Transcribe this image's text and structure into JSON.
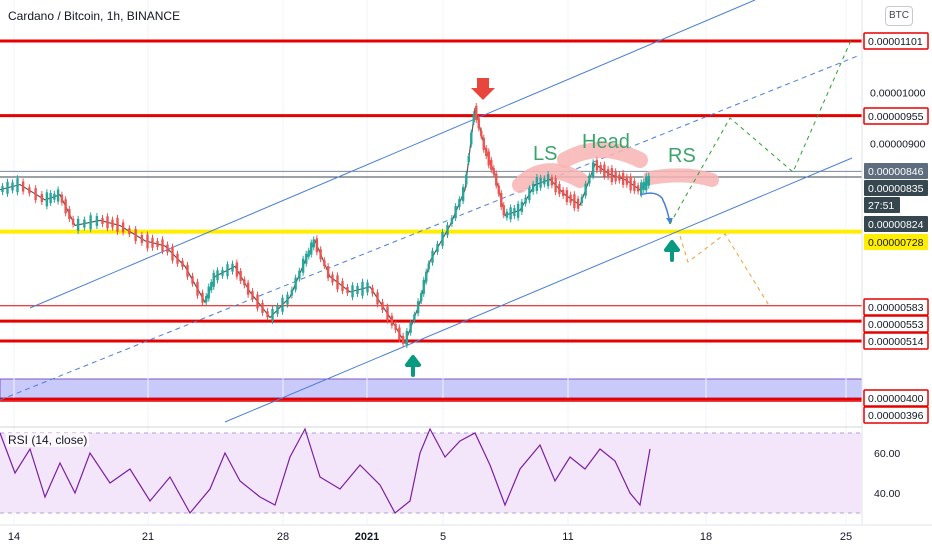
{
  "header": {
    "title": "Cardano / Bitcoin, 1h, BINANCE",
    "currency_button": "BTC"
  },
  "rsi": {
    "label": "RSI (14, close)"
  },
  "colors": {
    "red": "#e60000",
    "yellow": "#ffee00",
    "blue": "#4a7fd6",
    "green": "#089981",
    "candle_up": "#26a69a",
    "candle_down": "#ef5350",
    "rsi": "#7b1fa2",
    "band": "#9d9df5",
    "rsi_band": "#f3e6fb"
  },
  "chart_data": {
    "type": "candlestick",
    "title": "Cardano / Bitcoin, 1h, BINANCE",
    "x_ticks": [
      "14",
      "21",
      "28",
      "2021",
      "5",
      "11",
      "18",
      "25"
    ],
    "y_ticks": [
      9e-06,
      1e-05
    ],
    "price_labels": [
      {
        "value": "0.00001101",
        "style": "red"
      },
      {
        "value": "0.00000955",
        "style": "red"
      },
      {
        "value": "0.00000846",
        "style": "gray"
      },
      {
        "value": "0.00000835",
        "style": "dark"
      },
      {
        "value": "27:51",
        "style": "countdown"
      },
      {
        "value": "0.00000824",
        "style": "dark"
      },
      {
        "value": "0.00000728",
        "style": "yellow"
      },
      {
        "value": "0.00000583",
        "style": "red"
      },
      {
        "value": "0.00000553",
        "style": "red"
      },
      {
        "value": "0.00000514",
        "style": "red"
      },
      {
        "value": "0.00000400",
        "style": "red"
      },
      {
        "value": "0.00000396",
        "style": "red"
      }
    ],
    "axis_labels": [
      "0.00001000",
      "0.00000900"
    ],
    "annotations": [
      "LS",
      "Head",
      "RS"
    ],
    "horizontal_levels": [
      1.101e-05,
      9.55e-06,
      8.46e-06,
      8.35e-06,
      7.28e-06,
      5.83e-06,
      5.53e-06,
      5.14e-06,
      4e-06,
      3.96e-06
    ],
    "path_points": [
      [
        0,
        8.1e-06
      ],
      [
        20,
        8.2e-06
      ],
      [
        45,
        7.9e-06
      ],
      [
        60,
        8e-06
      ],
      [
        75,
        7.4e-06
      ],
      [
        100,
        7.5e-06
      ],
      [
        120,
        7.4e-06
      ],
      [
        145,
        7.1e-06
      ],
      [
        165,
        7e-06
      ],
      [
        185,
        6.6e-06
      ],
      [
        205,
        5.9e-06
      ],
      [
        215,
        6.4e-06
      ],
      [
        235,
        6.6e-06
      ],
      [
        250,
        6.1e-06
      ],
      [
        270,
        5.6e-06
      ],
      [
        290,
        6e-06
      ],
      [
        305,
        6.7e-06
      ],
      [
        315,
        7.1e-06
      ],
      [
        330,
        6.4e-06
      ],
      [
        350,
        6.1e-06
      ],
      [
        370,
        6.2e-06
      ],
      [
        390,
        5.6e-06
      ],
      [
        405,
        5.1e-06
      ],
      [
        420,
        5.9e-06
      ],
      [
        430,
        6.7e-06
      ],
      [
        450,
        7.4e-06
      ],
      [
        465,
        8.1e-06
      ],
      [
        475,
        9.7e-06
      ],
      [
        485,
        8.9e-06
      ],
      [
        495,
        8.4e-06
      ],
      [
        505,
        7.6e-06
      ],
      [
        520,
        7.7e-06
      ],
      [
        535,
        8.2e-06
      ],
      [
        550,
        8.3e-06
      ],
      [
        565,
        8e-06
      ],
      [
        580,
        7.8e-06
      ],
      [
        595,
        8.6e-06
      ],
      [
        610,
        8.4e-06
      ],
      [
        625,
        8.3e-06
      ],
      [
        640,
        8.1e-06
      ],
      [
        650,
        8.3e-06
      ]
    ],
    "rsi_ticks": [
      60,
      40
    ],
    "rsi_points": [
      [
        0,
        70
      ],
      [
        15,
        50
      ],
      [
        30,
        62
      ],
      [
        45,
        38
      ],
      [
        60,
        55
      ],
      [
        75,
        40
      ],
      [
        90,
        60
      ],
      [
        110,
        45
      ],
      [
        130,
        52
      ],
      [
        150,
        36
      ],
      [
        170,
        48
      ],
      [
        190,
        30
      ],
      [
        210,
        42
      ],
      [
        225,
        60
      ],
      [
        240,
        46
      ],
      [
        260,
        38
      ],
      [
        275,
        34
      ],
      [
        290,
        58
      ],
      [
        305,
        72
      ],
      [
        320,
        48
      ],
      [
        340,
        42
      ],
      [
        360,
        54
      ],
      [
        380,
        44
      ],
      [
        395,
        30
      ],
      [
        410,
        36
      ],
      [
        420,
        60
      ],
      [
        430,
        72
      ],
      [
        445,
        58
      ],
      [
        460,
        66
      ],
      [
        475,
        70
      ],
      [
        490,
        54
      ],
      [
        505,
        34
      ],
      [
        520,
        52
      ],
      [
        540,
        64
      ],
      [
        555,
        46
      ],
      [
        570,
        58
      ],
      [
        585,
        52
      ],
      [
        600,
        62
      ],
      [
        615,
        56
      ],
      [
        630,
        40
      ],
      [
        640,
        34
      ],
      [
        650,
        62
      ]
    ]
  }
}
